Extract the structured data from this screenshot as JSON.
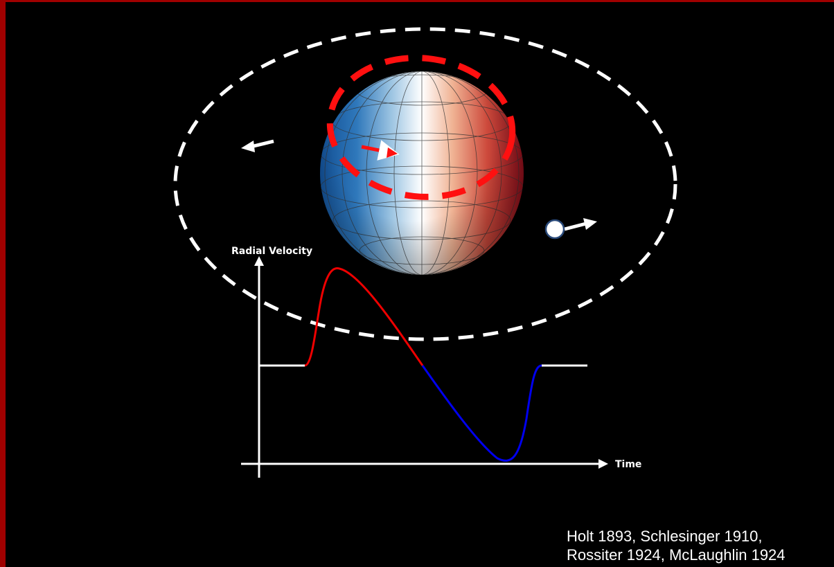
{
  "labels": {
    "y_axis": "Radial Velocity",
    "x_axis": "Time"
  },
  "citation": [
    "Holt 1893, Schlesinger 1910,",
    "Rossiter 1924, McLaughlin 1924"
  ]
}
